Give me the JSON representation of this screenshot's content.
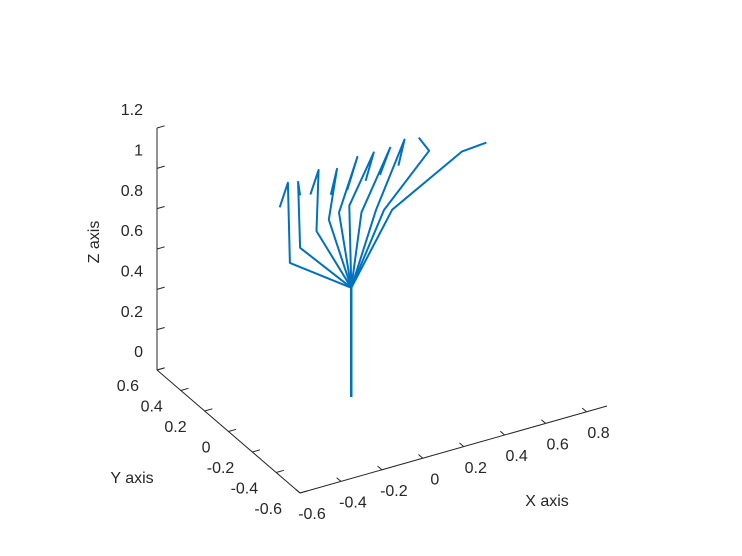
{
  "chart_data": {
    "type": "line3d",
    "xlabel": "X axis",
    "ylabel": "Y axis",
    "zlabel": "Z axis",
    "xlim": [
      -0.6,
      0.9
    ],
    "xticks": [
      -0.6,
      -0.4,
      -0.2,
      0,
      0.2,
      0.4,
      0.6,
      0.8
    ],
    "ylim": [
      -0.6,
      0.6
    ],
    "yticks": [
      -0.6,
      -0.4,
      -0.2,
      0,
      0.2,
      0.4,
      0.6
    ],
    "zlim": [
      0,
      1.2
    ],
    "zticks": [
      0,
      0.2,
      0.4,
      0.6,
      0.8,
      1,
      1.2
    ],
    "series": [
      {
        "color": "#0072bd",
        "x": [
          0,
          0,
          -0.3,
          -0.31,
          -0.35
        ],
        "y": [
          0,
          0,
          0,
          0,
          0
        ],
        "z": [
          0,
          0.54,
          0.75,
          1.15,
          1.04
        ]
      },
      {
        "color": "#0072bd",
        "x": [
          0,
          0,
          -0.25,
          -0.26,
          -0.25
        ],
        "y": [
          0,
          0,
          0,
          0,
          0
        ],
        "z": [
          0,
          0.54,
          0.81,
          1.14,
          1.07
        ]
      },
      {
        "color": "#0072bd",
        "x": [
          0,
          0,
          -0.17,
          -0.16,
          -0.2
        ],
        "y": [
          0,
          0,
          0,
          0,
          0
        ],
        "z": [
          0,
          0.54,
          0.87,
          1.17,
          1.06
        ]
      },
      {
        "color": "#0072bd",
        "x": [
          0,
          0,
          -0.11,
          -0.07,
          -0.1
        ],
        "y": [
          0,
          0,
          0,
          0,
          0
        ],
        "z": [
          0,
          0.54,
          0.91,
          1.15,
          1.03
        ]
      },
      {
        "color": "#0072bd",
        "x": [
          0,
          0,
          -0.06,
          0.03,
          -0.02
        ],
        "y": [
          0,
          0,
          0,
          0,
          0
        ],
        "z": [
          0,
          0.54,
          0.93,
          1.18,
          1.03
        ]
      },
      {
        "color": "#0072bd",
        "x": [
          0,
          0,
          -0.01,
          0.11,
          0.07
        ],
        "y": [
          0,
          0,
          0,
          0,
          0
        ],
        "z": [
          0,
          0.54,
          0.95,
          1.18,
          1.05
        ]
      },
      {
        "color": "#0072bd",
        "x": [
          0,
          0,
          0.05,
          0.19,
          0.14
        ],
        "y": [
          0,
          0,
          0,
          0,
          0
        ],
        "z": [
          0,
          0.54,
          0.9,
          1.18,
          1.06
        ]
      },
      {
        "color": "#0072bd",
        "x": [
          0,
          0,
          0.12,
          0.26,
          0.23
        ],
        "y": [
          0,
          0,
          0,
          0,
          0
        ],
        "z": [
          0,
          0.54,
          0.89,
          1.2,
          1.08
        ]
      },
      {
        "color": "#0072bd",
        "x": [
          0,
          0,
          0.16,
          0.38,
          0.33
        ],
        "y": [
          0,
          0,
          0,
          0,
          0
        ],
        "z": [
          0,
          0.54,
          0.88,
          1.11,
          1.19
        ]
      },
      {
        "color": "#0072bd",
        "x": [
          0,
          0,
          0.2,
          0.54,
          0.66
        ],
        "y": [
          0,
          0,
          0,
          0,
          0
        ],
        "z": [
          0,
          0.54,
          0.87,
          1.06,
          1.07
        ]
      }
    ]
  }
}
